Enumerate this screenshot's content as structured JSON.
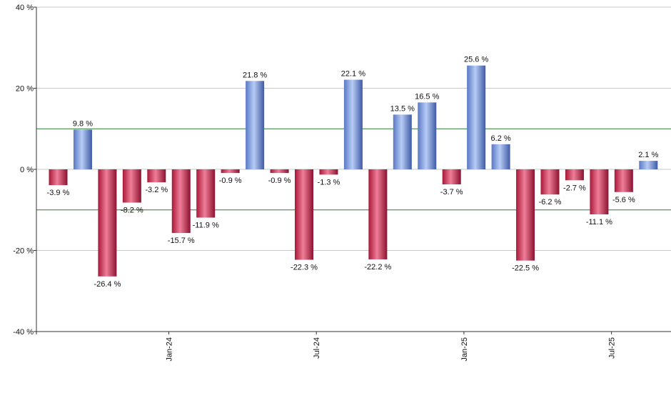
{
  "chart_data": {
    "type": "bar",
    "title": "",
    "xlabel": "",
    "ylabel": "",
    "ylim": [
      -40,
      40
    ],
    "y_ticks": [
      40,
      20,
      0,
      -20,
      -40
    ],
    "y_tick_suffix": " %",
    "grid": true,
    "legend": "none",
    "reference_lines": [
      10,
      -10
    ],
    "colors": {
      "positive": "#6f8fd6",
      "negative": "#c8284c",
      "reference": "#2e7d32",
      "grid": "#c8c8c8"
    },
    "values": [
      -3.9,
      9.8,
      -26.4,
      -8.2,
      -3.2,
      -15.7,
      -11.9,
      -0.9,
      21.8,
      -0.9,
      -22.3,
      -1.3,
      22.1,
      -22.2,
      13.5,
      16.5,
      -3.7,
      25.6,
      6.2,
      -22.5,
      -6.2,
      -2.7,
      -11.1,
      -5.6,
      2.1
    ],
    "labels": [
      "-3.9 %",
      "9.8 %",
      "-26.4 %",
      "-8.2 %",
      "-3.2 %",
      "-15.7 %",
      "-11.9 %",
      "-0.9 %",
      "21.8 %",
      "-0.9 %",
      "-22.3 %",
      "-1.3 %",
      "22.1 %",
      "-22.2 %",
      "13.5 %",
      "16.5 %",
      "-3.7 %",
      "25.6 %",
      "6.2 %",
      "-22.5 %",
      "-6.2 %",
      "-2.7 %",
      "-11.1 %",
      "-5.6 %",
      "2.1 %"
    ],
    "x_ticks": [
      {
        "label": "Jan-24",
        "position": 4.5
      },
      {
        "label": "Jul-24",
        "position": 10.5
      },
      {
        "label": "Jan-25",
        "position": 16.5
      },
      {
        "label": "Jul-25",
        "position": 22.5
      }
    ]
  }
}
